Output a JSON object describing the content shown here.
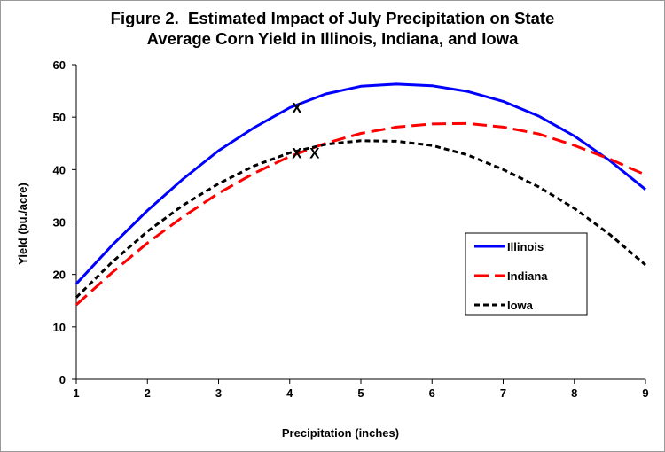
{
  "chart_data": {
    "type": "line",
    "title": "Figure 2.  Estimated Impact of July Precipitation on State\nAverage Corn Yield in Illinois, Indiana, and Iowa",
    "xlabel": "Precipitation (inches)",
    "ylabel": "Yield (bu./acre)",
    "xlim": [
      1,
      9
    ],
    "ylim": [
      0,
      60
    ],
    "xticks": [
      1,
      2,
      3,
      4,
      5,
      6,
      7,
      8,
      9
    ],
    "yticks": [
      0,
      10,
      20,
      30,
      40,
      50,
      60
    ],
    "grid": false,
    "legend_position": "right",
    "series": [
      {
        "name": "Illinois",
        "color": "#0000ff",
        "style": "solid",
        "x": [
          1,
          1.5,
          2,
          2.5,
          3,
          3.5,
          4,
          4.5,
          5,
          5.5,
          6,
          6.5,
          7,
          7.5,
          8,
          8.5,
          9
        ],
        "y": [
          18.2,
          25.5,
          32.2,
          38.2,
          43.6,
          48.0,
          51.8,
          54.4,
          55.9,
          56.3,
          56.0,
          54.9,
          53.0,
          50.2,
          46.4,
          41.7,
          36.2
        ]
      },
      {
        "name": "Indiana",
        "color": "#ff0000",
        "style": "dashed",
        "x": [
          1,
          1.5,
          2,
          2.5,
          3,
          3.5,
          4,
          4.5,
          5,
          5.5,
          6,
          6.5,
          7,
          7.5,
          8,
          8.5,
          9
        ],
        "y": [
          14.2,
          20.3,
          26.0,
          31.0,
          35.5,
          39.3,
          42.5,
          45.0,
          46.9,
          48.1,
          48.7,
          48.8,
          48.1,
          46.8,
          44.6,
          42.0,
          39.0
        ]
      },
      {
        "name": "Iowa",
        "color": "#000000",
        "style": "dotted",
        "x": [
          1,
          1.5,
          2,
          2.5,
          3,
          3.5,
          4,
          4.5,
          5,
          5.5,
          6,
          6.5,
          7,
          7.5,
          8,
          8.5,
          9
        ],
        "y": [
          15.6,
          22.3,
          28.2,
          33.2,
          37.3,
          40.7,
          43.2,
          44.8,
          45.5,
          45.4,
          44.6,
          42.8,
          40.0,
          36.7,
          32.6,
          27.6,
          21.8
        ]
      }
    ],
    "markers": [
      {
        "label": "X",
        "x": 4.1,
        "y": 51.8
      },
      {
        "label": "X",
        "x": 4.1,
        "y": 43.2
      },
      {
        "label": "X",
        "x": 4.35,
        "y": 43.2
      }
    ]
  }
}
